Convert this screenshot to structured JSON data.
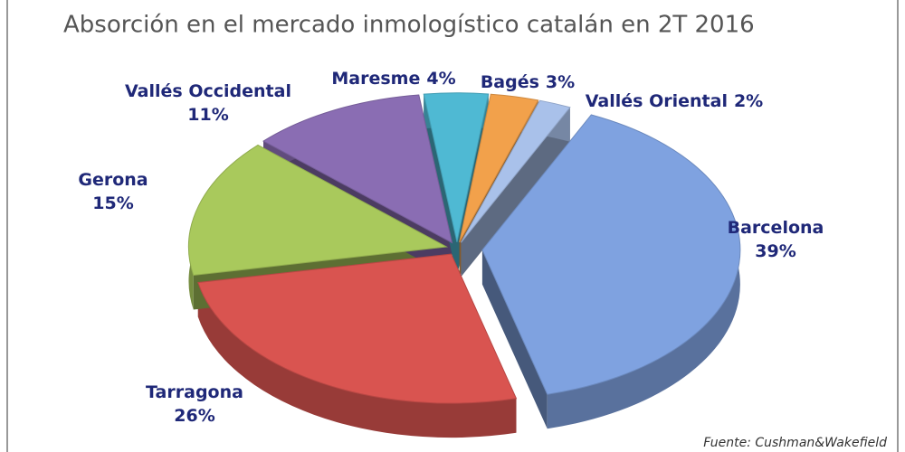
{
  "chart_data": {
    "type": "pie3d",
    "title": "Absorción en el mercado inmologístico catalán en 2T 2016",
    "categories": [
      "Barcelona",
      "Tarragona",
      "Gerona",
      "Vallés Occidental",
      "Maresme",
      "Bagés",
      "Vallés Oriental"
    ],
    "values": [
      39,
      26,
      15,
      11,
      4,
      3,
      2
    ],
    "value_labels": [
      "39%",
      "26%",
      "15%",
      "11%",
      "4%",
      "3%",
      "2%"
    ],
    "colors": [
      "#7fa2e0",
      "#d95450",
      "#a9c95c",
      "#8a6db3",
      "#4fb9d3",
      "#f2a14b",
      "#a9c1ea"
    ],
    "source": "Fuente: Cushman&Wakefield"
  }
}
